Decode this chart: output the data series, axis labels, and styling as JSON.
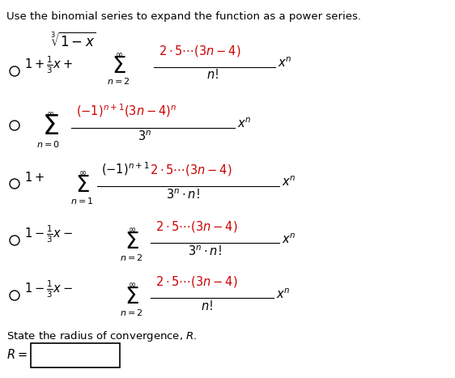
{
  "bg_color": "#ffffff",
  "text_color": "#000000",
  "red_color": "#cc0000",
  "title": "Use the binomial series to expand the function as a power series.",
  "figsize": [
    5.62,
    4.67
  ],
  "dpi": 100
}
